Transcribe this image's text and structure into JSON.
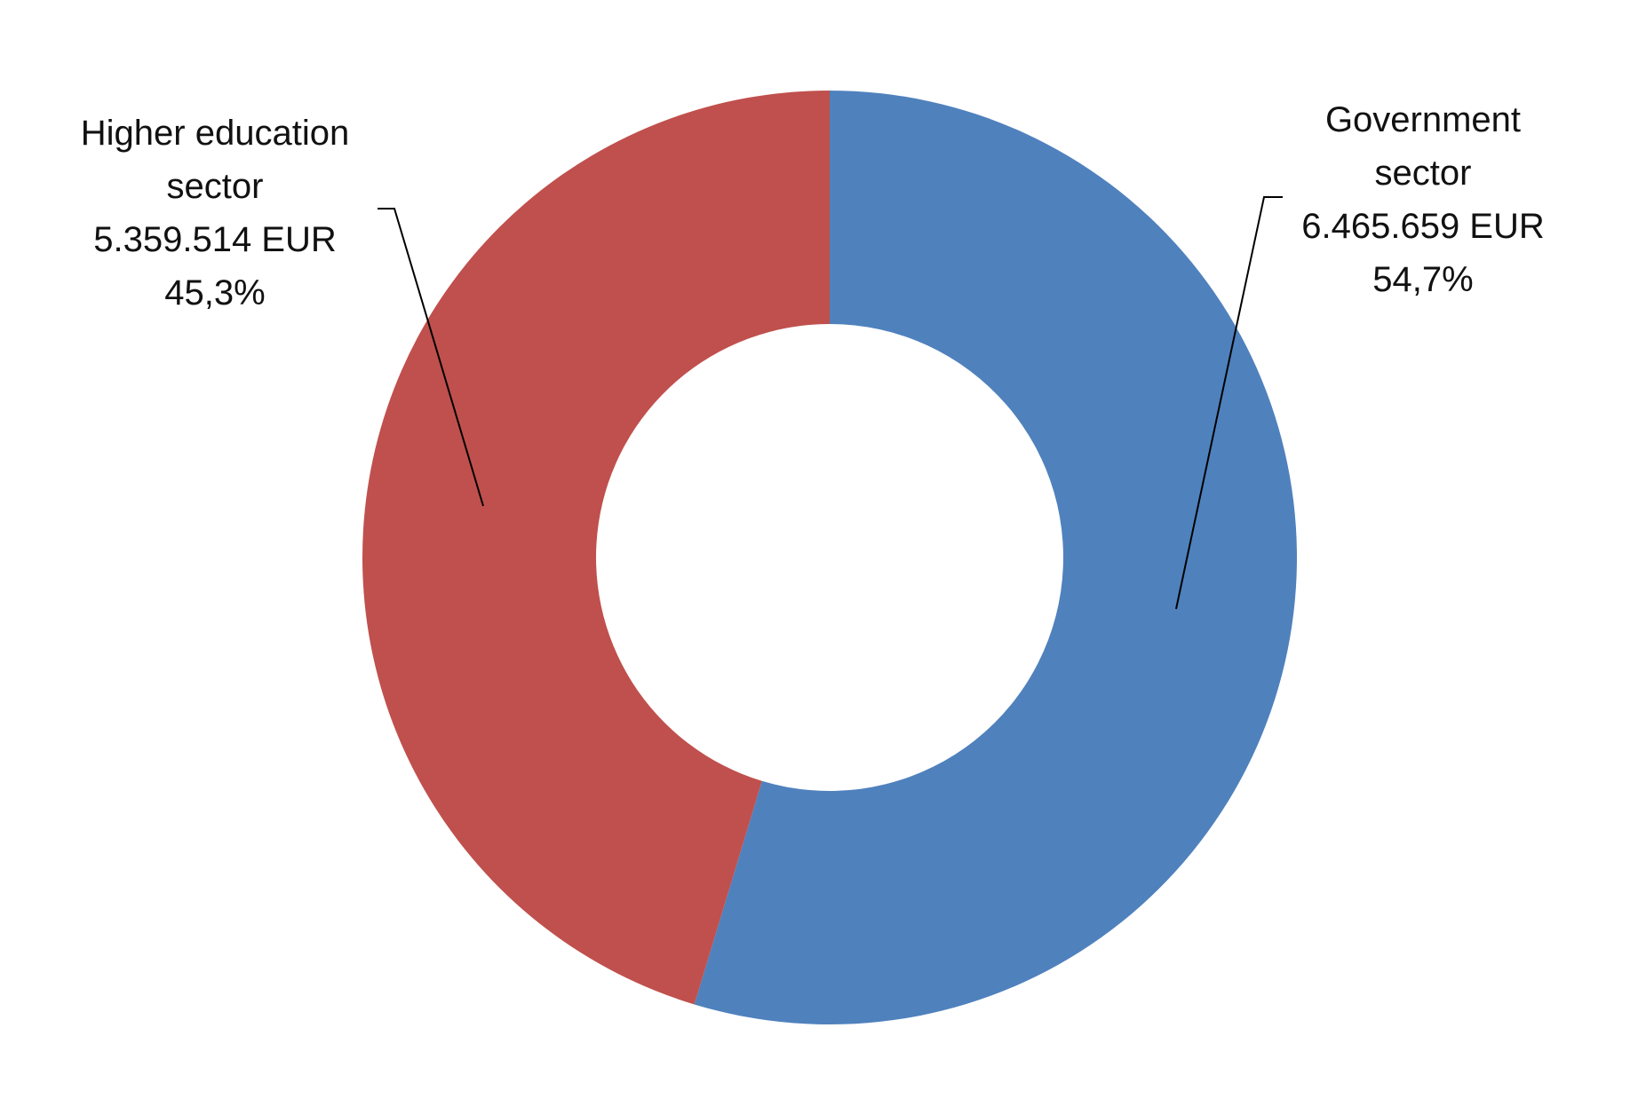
{
  "chart_data": {
    "type": "donut",
    "series": [
      {
        "name": "Government sector",
        "color": "#4f81bd"
      },
      {
        "name": "Higher education sector",
        "color": "#c0504d"
      }
    ],
    "values": [
      6465659,
      5359514
    ],
    "value_labels": [
      "6.465.659 EUR",
      "5.359.514 EUR"
    ],
    "percentages": [
      54.7,
      45.3
    ],
    "percentage_labels": [
      "54,7%",
      "45,3%"
    ]
  }
}
